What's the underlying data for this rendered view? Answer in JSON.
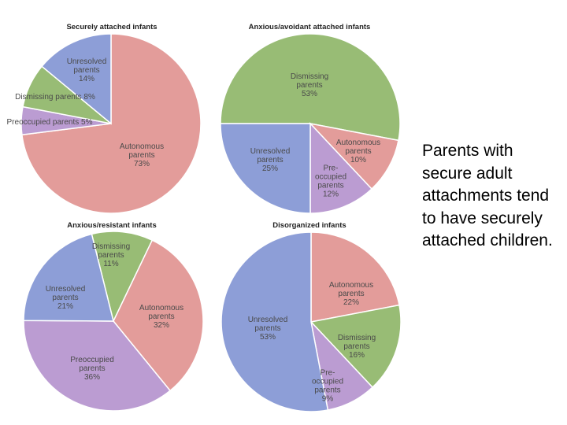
{
  "colors": {
    "autonomous": "#e39c9a",
    "dismissing": "#98bc75",
    "preoccupied": "#bb9cd2",
    "unresolved": "#8d9ed7"
  },
  "caption": "Parents with secure adult attachments tend to have securely attached children.",
  "chart_data": [
    {
      "type": "pie",
      "title": "Securely attached infants",
      "slices": [
        {
          "key": "autonomous",
          "label": "Autonomous parents",
          "value": 73,
          "display": "73%"
        },
        {
          "key": "preoccupied",
          "label": "Preoccupied parents",
          "value": 5,
          "display": "5%"
        },
        {
          "key": "dismissing",
          "label": "Dismissing parents",
          "value": 8,
          "display": "8%"
        },
        {
          "key": "unresolved",
          "label": "Unresolved parents",
          "value": 14,
          "display": "14%"
        }
      ]
    },
    {
      "type": "pie",
      "title": "Anxious/avoidant attached infants",
      "slices": [
        {
          "key": "dismissing",
          "label": "Dismissing parents",
          "value": 53,
          "display": "53%"
        },
        {
          "key": "autonomous",
          "label": "Autonomous parents",
          "value": 10,
          "display": "10%"
        },
        {
          "key": "preoccupied",
          "label": "Pre-occupied parents",
          "value": 12,
          "display": "12%"
        },
        {
          "key": "unresolved",
          "label": "Unresolved parents",
          "value": 25,
          "display": "25%"
        }
      ]
    },
    {
      "type": "pie",
      "title": "Anxious/resistant infants",
      "slices": [
        {
          "key": "dismissing",
          "label": "Dismissing parents",
          "value": 11,
          "display": "11%"
        },
        {
          "key": "autonomous",
          "label": "Autonomous parents",
          "value": 32,
          "display": "32%"
        },
        {
          "key": "preoccupied",
          "label": "Preoccupied parents",
          "value": 36,
          "display": "36%"
        },
        {
          "key": "unresolved",
          "label": "Unresolved parents",
          "value": 21,
          "display": "21%"
        }
      ]
    },
    {
      "type": "pie",
      "title": "Disorganized infants",
      "slices": [
        {
          "key": "autonomous",
          "label": "Autonomous parents",
          "value": 22,
          "display": "22%"
        },
        {
          "key": "dismissing",
          "label": "Dismissing parents",
          "value": 16,
          "display": "16%"
        },
        {
          "key": "preoccupied",
          "label": "Pre-occupied parents",
          "value": 9,
          "display": "9%"
        },
        {
          "key": "unresolved",
          "label": "Unresolved parents",
          "value": 53,
          "display": "53%"
        }
      ]
    }
  ]
}
